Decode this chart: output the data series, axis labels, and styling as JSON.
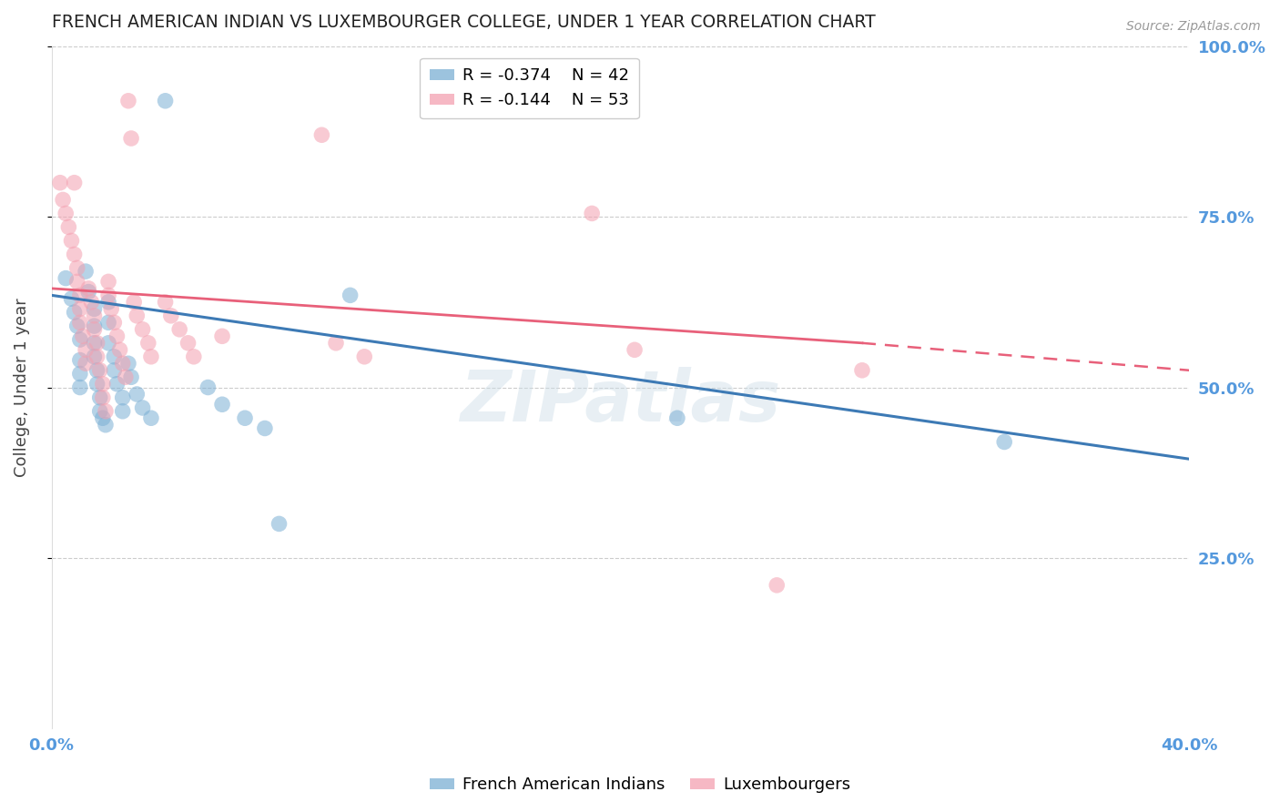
{
  "title": "FRENCH AMERICAN INDIAN VS LUXEMBOURGER COLLEGE, UNDER 1 YEAR CORRELATION CHART",
  "source": "Source: ZipAtlas.com",
  "ylabel": "College, Under 1 year",
  "blue_R": -0.374,
  "blue_N": 42,
  "pink_R": -0.144,
  "pink_N": 53,
  "legend_label_blue": "French American Indians",
  "legend_label_pink": "Luxembourgers",
  "watermark": "ZIPatlas",
  "x_min": 0.0,
  "x_max": 0.4,
  "y_min": 0.0,
  "y_max": 1.0,
  "blue_color": "#7BAFD4",
  "pink_color": "#F4A0B0",
  "blue_line_color": "#3D7AB5",
  "pink_line_color": "#E8607A",
  "axis_label_color": "#5599DD",
  "grid_color": "#CCCCCC",
  "blue_scatter": [
    [
      0.005,
      0.66
    ],
    [
      0.007,
      0.63
    ],
    [
      0.008,
      0.61
    ],
    [
      0.009,
      0.59
    ],
    [
      0.01,
      0.57
    ],
    [
      0.01,
      0.54
    ],
    [
      0.01,
      0.52
    ],
    [
      0.01,
      0.5
    ],
    [
      0.012,
      0.67
    ],
    [
      0.013,
      0.64
    ],
    [
      0.015,
      0.615
    ],
    [
      0.015,
      0.59
    ],
    [
      0.015,
      0.565
    ],
    [
      0.015,
      0.545
    ],
    [
      0.016,
      0.525
    ],
    [
      0.016,
      0.505
    ],
    [
      0.017,
      0.485
    ],
    [
      0.017,
      0.465
    ],
    [
      0.018,
      0.455
    ],
    [
      0.019,
      0.445
    ],
    [
      0.02,
      0.625
    ],
    [
      0.02,
      0.595
    ],
    [
      0.02,
      0.565
    ],
    [
      0.022,
      0.545
    ],
    [
      0.022,
      0.525
    ],
    [
      0.023,
      0.505
    ],
    [
      0.025,
      0.485
    ],
    [
      0.025,
      0.465
    ],
    [
      0.027,
      0.535
    ],
    [
      0.028,
      0.515
    ],
    [
      0.03,
      0.49
    ],
    [
      0.032,
      0.47
    ],
    [
      0.035,
      0.455
    ],
    [
      0.04,
      0.92
    ],
    [
      0.055,
      0.5
    ],
    [
      0.06,
      0.475
    ],
    [
      0.068,
      0.455
    ],
    [
      0.075,
      0.44
    ],
    [
      0.08,
      0.3
    ],
    [
      0.105,
      0.635
    ],
    [
      0.22,
      0.455
    ],
    [
      0.335,
      0.42
    ]
  ],
  "pink_scatter": [
    [
      0.003,
      0.8
    ],
    [
      0.004,
      0.775
    ],
    [
      0.005,
      0.755
    ],
    [
      0.006,
      0.735
    ],
    [
      0.007,
      0.715
    ],
    [
      0.008,
      0.8
    ],
    [
      0.008,
      0.695
    ],
    [
      0.009,
      0.675
    ],
    [
      0.009,
      0.655
    ],
    [
      0.01,
      0.635
    ],
    [
      0.01,
      0.615
    ],
    [
      0.01,
      0.595
    ],
    [
      0.011,
      0.575
    ],
    [
      0.012,
      0.555
    ],
    [
      0.012,
      0.535
    ],
    [
      0.013,
      0.645
    ],
    [
      0.014,
      0.625
    ],
    [
      0.015,
      0.605
    ],
    [
      0.015,
      0.585
    ],
    [
      0.016,
      0.565
    ],
    [
      0.016,
      0.545
    ],
    [
      0.017,
      0.525
    ],
    [
      0.018,
      0.505
    ],
    [
      0.018,
      0.485
    ],
    [
      0.019,
      0.465
    ],
    [
      0.02,
      0.655
    ],
    [
      0.02,
      0.635
    ],
    [
      0.021,
      0.615
    ],
    [
      0.022,
      0.595
    ],
    [
      0.023,
      0.575
    ],
    [
      0.024,
      0.555
    ],
    [
      0.025,
      0.535
    ],
    [
      0.026,
      0.515
    ],
    [
      0.027,
      0.92
    ],
    [
      0.028,
      0.865
    ],
    [
      0.029,
      0.625
    ],
    [
      0.03,
      0.605
    ],
    [
      0.032,
      0.585
    ],
    [
      0.034,
      0.565
    ],
    [
      0.035,
      0.545
    ],
    [
      0.04,
      0.625
    ],
    [
      0.042,
      0.605
    ],
    [
      0.045,
      0.585
    ],
    [
      0.048,
      0.565
    ],
    [
      0.05,
      0.545
    ],
    [
      0.06,
      0.575
    ],
    [
      0.095,
      0.87
    ],
    [
      0.1,
      0.565
    ],
    [
      0.11,
      0.545
    ],
    [
      0.19,
      0.755
    ],
    [
      0.205,
      0.555
    ],
    [
      0.255,
      0.21
    ],
    [
      0.285,
      0.525
    ]
  ]
}
